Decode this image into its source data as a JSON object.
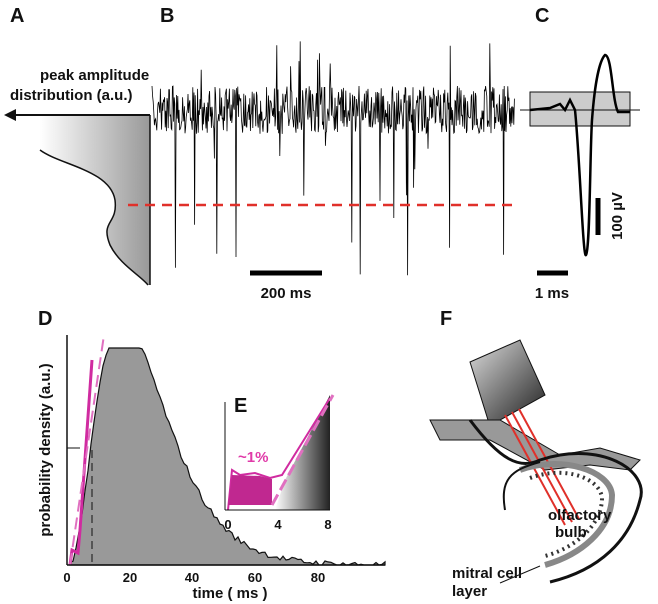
{
  "panels": {
    "a": {
      "label": "A",
      "lines": [
        "peak amplitude",
        "distribution (a.u.)"
      ]
    },
    "b": {
      "label": "B",
      "scale_label": "200 ms"
    },
    "c": {
      "label": "C",
      "amplitude_scale": "100 µV",
      "time_scale": "1 ms"
    },
    "d": {
      "label": "D",
      "y_label": "probability density (a.u.)",
      "x_label": "time ( ms )",
      "xticks": [
        0,
        20,
        40,
        60,
        80
      ]
    },
    "e": {
      "label": "E",
      "xticks": [
        0,
        4,
        8
      ],
      "annotation": "~1%"
    },
    "f": {
      "label": "F",
      "bulb_label": [
        "olfactory",
        "bulb"
      ],
      "layer_label": [
        "mitral cell",
        "layer"
      ]
    }
  }
}
